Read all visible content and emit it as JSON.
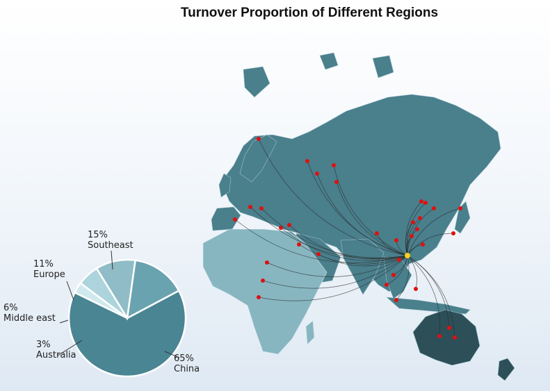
{
  "chart_data": {
    "type": "pie",
    "title": "Turnover Proportion of Different Regions",
    "slices": [
      {
        "label": "China",
        "value": 65,
        "pct_text": "65%",
        "color": "#4a8593"
      },
      {
        "label": "Australia",
        "value": 3,
        "pct_text": "3%",
        "color": "#cfe9ee"
      },
      {
        "label": "Middle east",
        "value": 6,
        "pct_text": "6%",
        "color": "#add4dc"
      },
      {
        "label": "Europe",
        "value": 11,
        "pct_text": "11%",
        "color": "#8fbcc6"
      },
      {
        "label": "Southeast",
        "value": 15,
        "pct_text": "15%",
        "color": "#6aa3b0"
      }
    ]
  },
  "map": {
    "land_color": "#4a7f8c",
    "africa_color": "#87b6c1",
    "australia_color": "#2d4f58",
    "point_color": "#e01010",
    "hub_color": "#f5d020"
  }
}
